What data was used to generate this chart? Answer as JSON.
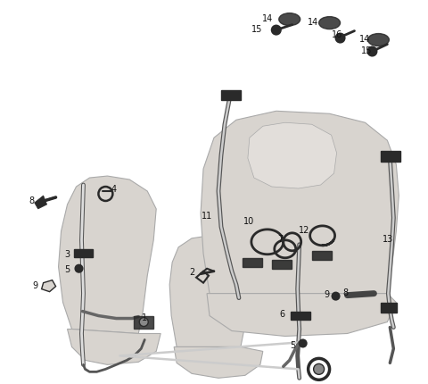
{
  "background_color": "#ffffff",
  "figsize": [
    4.8,
    4.31
  ],
  "dpi": 100,
  "line_color": "#2a2a2a",
  "seat_color": "#d8d4cf",
  "seat_edge": "#aaaaaa",
  "label_color": "#111111",
  "label_fs": 7.0,
  "lw_belt": 1.4,
  "lw_seat": 0.8
}
